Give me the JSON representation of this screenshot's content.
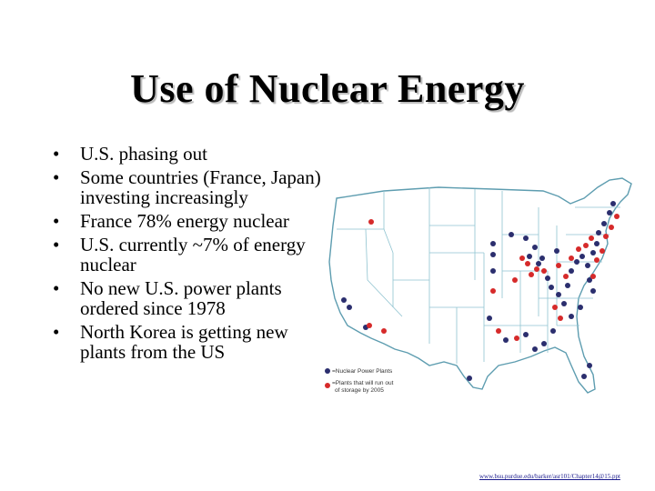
{
  "slide": {
    "title": "Use of Nuclear Energy",
    "bullets": [
      "U.S. phasing out",
      "Some countries (France, Japan) investing increasingly",
      "France 78% energy nuclear",
      "U.S. currently ~7% of energy nuclear",
      "No new U.S. power plants ordered since 1978",
      "North Korea is getting new plants from the US"
    ],
    "bullet_glyph": "•",
    "source_url": "www.bsu.purdue.edu/barker/asr101/Chapter14@15.ppt"
  },
  "map": {
    "legend": {
      "nuclear_plants": "=Nuclear Power Plants",
      "running_out_line1": "=Plants that will run out",
      "running_out_line2": "of storage by 2005"
    },
    "colors": {
      "nuclear_plant_dot": "#2b2e6e",
      "running_out_dot": "#d62a2a",
      "state_border": "#6fa8b8",
      "land_fill": "#ffffff"
    }
  }
}
